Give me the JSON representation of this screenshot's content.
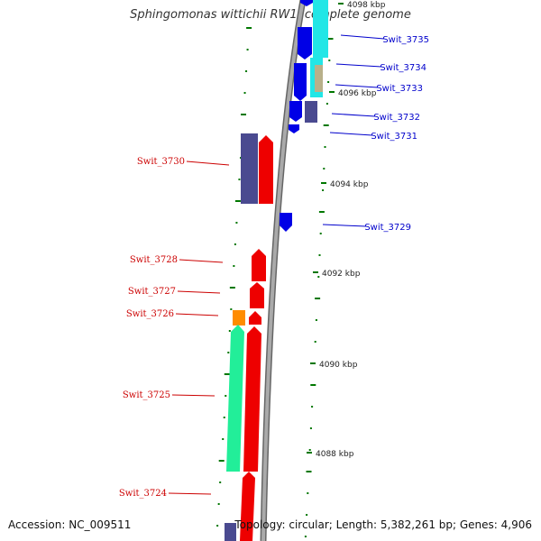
{
  "title": "Sphingomonas wittichii RW1, complete genome",
  "accession": "Accession: NC_009511",
  "topology": "Topology: circular; Length: 5,382,261 bp; Genes: 4,906",
  "scale_labels": [
    "4098 kbp",
    "4096 kbp",
    "4094 kbp",
    "4092 kbp",
    "4090 kbp",
    "4088 kbp"
  ],
  "genes_right": [
    "Swit_3735",
    "Swit_3734",
    "Swit_3733",
    "Swit_3732",
    "Swit_3731",
    "Swit_3729"
  ],
  "genes_left": [
    "Swit_3730",
    "Swit_3728",
    "Swit_3727",
    "Swit_3726",
    "Swit_3725",
    "Swit_3724"
  ],
  "colors": {
    "forward_strand_label": "#0000cc",
    "reverse_strand_label": "#cc0000",
    "gene_blue": "#0000e6",
    "gene_red": "#ee0000",
    "gene_cyan": "#22e6e6",
    "gene_navy": "#4a4a90",
    "gene_green": "#22ee99",
    "gene_orange": "#ff8c00",
    "gene_khaki": "#b8b08a",
    "backbone": "#888888",
    "ticks": "#007700"
  }
}
